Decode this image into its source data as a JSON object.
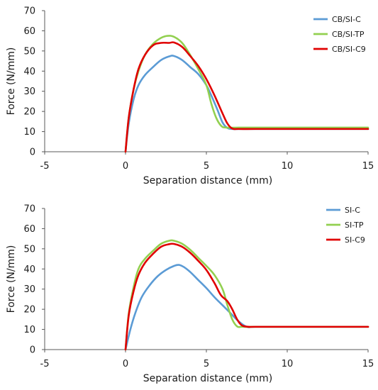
{
  "chart_data": [
    {
      "type": "line",
      "title": "",
      "xlabel": "Separation distance (mm)",
      "ylabel": "Force (N/mm)",
      "xlim": [
        -5,
        15
      ],
      "ylim": [
        0,
        70
      ],
      "xticks": [
        "-5",
        "0",
        "5",
        "10",
        "15"
      ],
      "yticks": [
        "0",
        "10",
        "20",
        "30",
        "40",
        "50",
        "60",
        "70"
      ],
      "grid": false,
      "legend": "top-right",
      "series": [
        {
          "name": "CB/SI-C",
          "color": "#5b9bd5",
          "x": [
            0,
            0.2,
            0.5,
            0.8,
            1.2,
            1.7,
            2.2,
            2.7,
            3.0,
            3.5,
            4.0,
            4.5,
            5.0,
            5.3,
            5.7,
            6.0,
            6.3,
            6.6,
            7.0,
            8.0,
            10.0,
            12.0,
            15.0
          ],
          "y": [
            0,
            14,
            26,
            33,
            38,
            42,
            45.5,
            47.3,
            47.5,
            45.5,
            42,
            38.5,
            33,
            28,
            20.5,
            14.5,
            11.8,
            11.3,
            11.3,
            11.3,
            11.3,
            11.3,
            11.3
          ]
        },
        {
          "name": "CB/SI-TP",
          "color": "#92d050",
          "x": [
            0,
            0.2,
            0.5,
            0.8,
            1.2,
            1.7,
            2.2,
            2.6,
            3.0,
            3.5,
            4.0,
            4.5,
            5.0,
            5.3,
            5.6,
            5.9,
            6.2,
            7.0,
            8.0,
            10.0,
            12.0,
            15.0
          ],
          "y": [
            0,
            17,
            31,
            40,
            48,
            53.5,
            56.5,
            57.5,
            57,
            54,
            48,
            41,
            33,
            24,
            17,
            13,
            12,
            12,
            12,
            12,
            12,
            12
          ]
        },
        {
          "name": "CB/SI-C9",
          "color": "#e00000",
          "x": [
            0,
            0.2,
            0.5,
            0.8,
            1.2,
            1.7,
            2.2,
            2.7,
            3.0,
            3.5,
            4.0,
            4.5,
            5.0,
            5.5,
            6.0,
            6.3,
            6.6,
            7.0,
            8.0,
            10.0,
            12.0,
            15.0
          ],
          "y": [
            0,
            17,
            31,
            41,
            48,
            52.8,
            54,
            54,
            54.2,
            52,
            47.5,
            42.5,
            36,
            28,
            19,
            14,
            11.5,
            11.3,
            11.3,
            11.3,
            11.3,
            11.3
          ]
        }
      ]
    },
    {
      "type": "line",
      "title": "",
      "xlabel": "Separation distance (mm)",
      "ylabel": "Force (N/mm)",
      "xlim": [
        -5,
        15
      ],
      "ylim": [
        0,
        70
      ],
      "xticks": [
        "-5",
        "0",
        "5",
        "10",
        "15"
      ],
      "yticks": [
        "0",
        "10",
        "20",
        "30",
        "40",
        "50",
        "60",
        "70"
      ],
      "grid": false,
      "legend": "top-right",
      "series": [
        {
          "name": "SI-C",
          "color": "#5b9bd5",
          "x": [
            0,
            0.3,
            0.6,
            1.0,
            1.5,
            2.0,
            2.5,
            3.0,
            3.3,
            3.6,
            4.0,
            4.5,
            5.0,
            5.5,
            6.0,
            6.5,
            7.0,
            7.5,
            8.0,
            10.0,
            12.0,
            15.0
          ],
          "y": [
            0,
            10,
            18,
            26,
            32,
            36.5,
            39.5,
            41.5,
            42,
            41,
            38.5,
            34.5,
            30.5,
            26,
            22,
            18,
            14,
            11.3,
            11.3,
            11.3,
            11.3,
            11.3
          ]
        },
        {
          "name": "SI-TP",
          "color": "#92d050",
          "x": [
            0,
            0.2,
            0.5,
            0.8,
            1.2,
            1.7,
            2.2,
            2.7,
            3.0,
            3.5,
            4.0,
            4.5,
            5.0,
            5.5,
            6.0,
            6.3,
            6.6,
            6.9,
            7.2,
            8.0,
            10.0,
            12.0,
            15.0
          ],
          "y": [
            0,
            18,
            31,
            40,
            45,
            49,
            52.5,
            54,
            54,
            52.5,
            49.5,
            45.5,
            41.5,
            37,
            30,
            22,
            15,
            11.5,
            11.3,
            11.3,
            11.3,
            11.3,
            11.3
          ]
        },
        {
          "name": "SI-C9",
          "color": "#e00000",
          "x": [
            0,
            0.2,
            0.5,
            0.8,
            1.2,
            1.7,
            2.2,
            2.7,
            3.0,
            3.5,
            4.0,
            4.5,
            5.0,
            5.5,
            5.9,
            6.3,
            6.6,
            6.9,
            7.2,
            7.6,
            8.0,
            10.0,
            12.0,
            15.0
          ],
          "y": [
            0,
            17,
            29,
            37,
            43,
            47.5,
            51,
            52.3,
            52.4,
            51,
            48,
            44,
            39.5,
            33,
            27,
            24,
            20,
            15,
            12,
            11.3,
            11.3,
            11.3,
            11.3,
            11.3
          ]
        }
      ]
    }
  ]
}
